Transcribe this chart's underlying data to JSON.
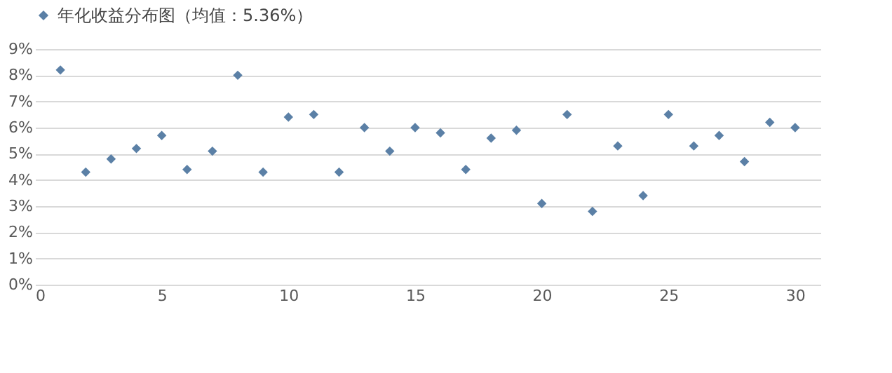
{
  "chart_data": {
    "type": "scatter",
    "x": [
      1,
      2,
      3,
      4,
      5,
      6,
      7,
      8,
      9,
      10,
      11,
      12,
      13,
      14,
      15,
      16,
      17,
      18,
      19,
      20,
      21,
      22,
      23,
      24,
      25,
      26,
      27,
      28,
      29,
      30
    ],
    "series": [
      {
        "name": "年化收益分布图（均值：5.36%）",
        "color": "#5b80a6",
        "values": [
          8.2,
          4.3,
          4.8,
          5.2,
          5.7,
          4.4,
          5.1,
          8.0,
          4.3,
          6.4,
          6.5,
          4.3,
          6.0,
          5.1,
          6.0,
          5.8,
          4.4,
          5.6,
          5.9,
          3.1,
          6.5,
          2.8,
          5.3,
          3.4,
          6.5,
          5.3,
          5.7,
          4.7,
          6.2,
          6.0
        ]
      }
    ],
    "xlim": [
      0,
      31
    ],
    "xticks": [
      0,
      5,
      10,
      15,
      20,
      25,
      30
    ],
    "ylim": [
      0,
      9
    ],
    "yticks": [
      {
        "value": 0,
        "label": "0%"
      },
      {
        "value": 1,
        "label": "1%"
      },
      {
        "value": 2,
        "label": "2%"
      },
      {
        "value": 3,
        "label": "3%"
      },
      {
        "value": 4,
        "label": "4%"
      },
      {
        "value": 5,
        "label": "5%"
      },
      {
        "value": 6,
        "label": "6%"
      },
      {
        "value": 7,
        "label": "7%"
      },
      {
        "value": 8,
        "label": "8%"
      },
      {
        "value": 9,
        "label": "9%"
      }
    ],
    "grid": "y",
    "legend": "top",
    "marker": "diamond"
  }
}
